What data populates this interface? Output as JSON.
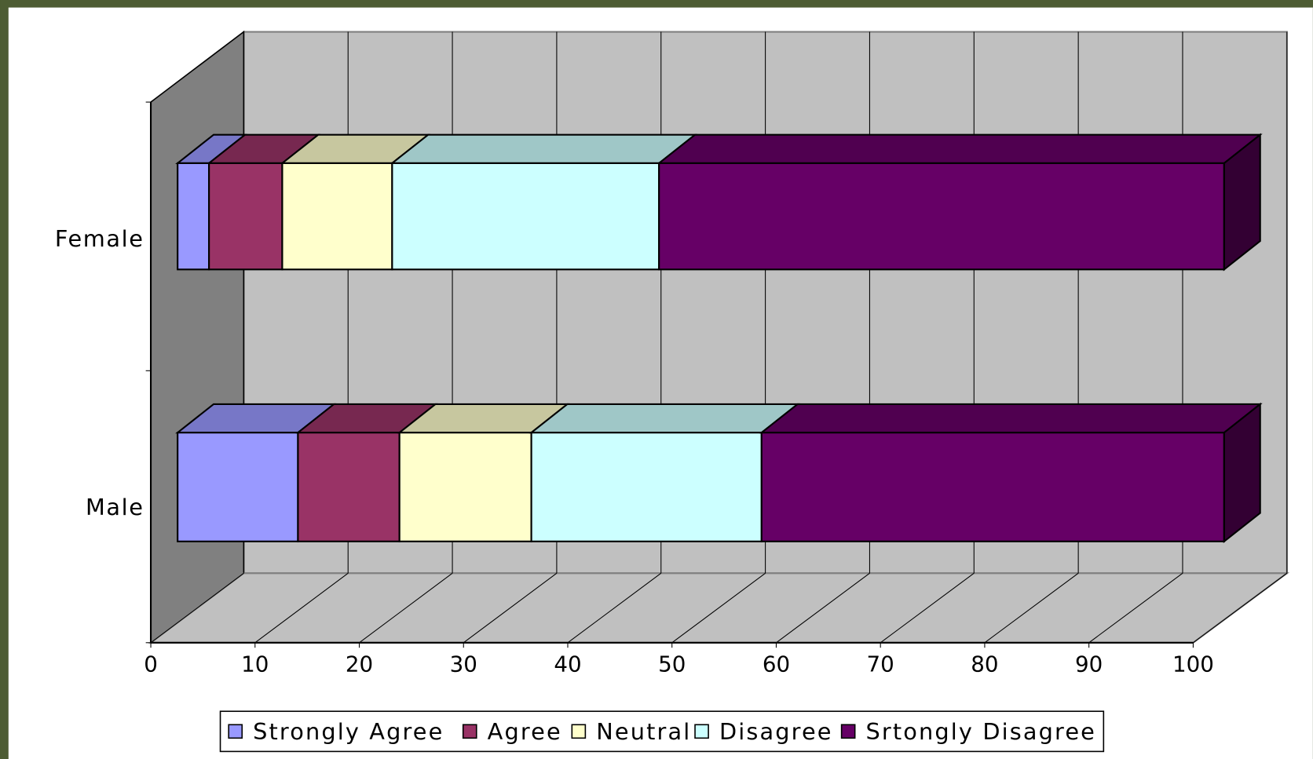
{
  "chart_data": {
    "type": "stacked-bar-3d-horizontal",
    "categories": [
      "Female",
      "Male"
    ],
    "series": [
      {
        "name": "Strongly Agree",
        "color": "#9999ff",
        "values": [
          3,
          11.5
        ]
      },
      {
        "name": "Agree",
        "color": "#993366",
        "values": [
          7,
          9.7
        ]
      },
      {
        "name": "Neutral",
        "color": "#ffffcc",
        "values": [
          10.5,
          12.6
        ]
      },
      {
        "name": "Disagree",
        "color": "#ccffff",
        "values": [
          25.5,
          22
        ]
      },
      {
        "name": "Srtongly Disagree",
        "color": "#660066",
        "values": [
          54,
          44.2
        ]
      }
    ],
    "xlim": [
      0,
      100
    ],
    "xticks": [
      0,
      10,
      20,
      30,
      40,
      50,
      60,
      70,
      80,
      90,
      100
    ],
    "grid": true,
    "legend": "bottom"
  }
}
